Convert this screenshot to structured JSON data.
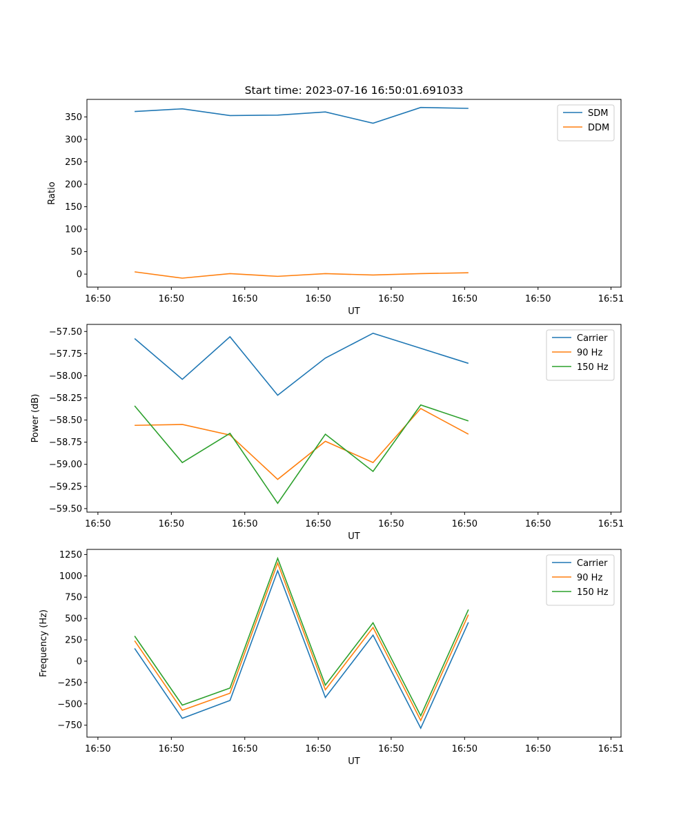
{
  "figure_title": "Start time: 2023-07-16 16:50:01.691033",
  "colors": {
    "blue": "#1f77b4",
    "orange": "#ff7f0e",
    "green": "#2ca02c"
  },
  "chart_data": [
    {
      "type": "line",
      "title": "Start time: 2023-07-16 16:50:01.691033",
      "xlabel": "UT",
      "ylabel": "Ratio",
      "ylim": [
        -29,
        389
      ],
      "yticks": [
        0,
        50,
        100,
        150,
        200,
        250,
        300,
        350
      ],
      "ytick_labels": [
        "0",
        "50",
        "100",
        "150",
        "200",
        "250",
        "300",
        "350"
      ],
      "xticks": [
        -0.77,
        0.77,
        2.31,
        3.85,
        5.38,
        6.92,
        8.46,
        9.99
      ],
      "xtick_labels": [
        "16:50",
        "16:50",
        "16:50",
        "16:50",
        "16:50",
        "16:50",
        "16:50",
        "16:51"
      ],
      "xlim": [
        -1,
        10.2
      ],
      "legend_position": "top-right",
      "x": [
        0,
        1,
        2,
        3,
        4,
        5,
        6,
        7
      ],
      "series": [
        {
          "name": "SDM",
          "color": "#1f77b4",
          "values": [
            362,
            368,
            353,
            354,
            361,
            336,
            371,
            369
          ]
        },
        {
          "name": "DDM",
          "color": "#ff7f0e",
          "values": [
            5,
            -9,
            1,
            -5,
            1,
            -2,
            1,
            3
          ]
        }
      ]
    },
    {
      "type": "line",
      "title": "",
      "xlabel": "UT",
      "ylabel": "Power (dB)",
      "ylim": [
        -59.54,
        -57.42
      ],
      "yticks": [
        -59.5,
        -59.25,
        -59.0,
        -58.75,
        -58.5,
        -58.25,
        -58.0,
        -57.75,
        -57.5
      ],
      "ytick_labels": [
        "−59.50",
        "−59.25",
        "−59.00",
        "−58.75",
        "−58.50",
        "−58.25",
        "−58.00",
        "−57.75",
        "−57.50"
      ],
      "xticks": [
        -0.77,
        0.77,
        2.31,
        3.85,
        5.38,
        6.92,
        8.46,
        9.99
      ],
      "xtick_labels": [
        "16:50",
        "16:50",
        "16:50",
        "16:50",
        "16:50",
        "16:50",
        "16:50",
        "16:51"
      ],
      "xlim": [
        -1,
        10.2
      ],
      "legend_position": "top-right",
      "x": [
        0,
        1,
        2,
        3,
        4,
        5,
        6,
        7
      ],
      "series": [
        {
          "name": "Carrier",
          "color": "#1f77b4",
          "values": [
            -57.58,
            -58.04,
            -57.56,
            -58.22,
            -57.8,
            -57.52,
            -57.69,
            -57.86
          ]
        },
        {
          "name": "90 Hz",
          "color": "#ff7f0e",
          "values": [
            -58.56,
            -58.55,
            -58.67,
            -59.17,
            -58.74,
            -58.98,
            -58.37,
            -58.66
          ]
        },
        {
          "name": "150 Hz",
          "color": "#2ca02c",
          "values": [
            -58.34,
            -58.98,
            -58.65,
            -59.44,
            -58.66,
            -59.08,
            -58.33,
            -58.51
          ]
        }
      ]
    },
    {
      "type": "line",
      "title": "",
      "xlabel": "UT",
      "ylabel": "Frequency (Hz)",
      "ylim": [
        -890,
        1310
      ],
      "yticks": [
        -750,
        -500,
        -250,
        0,
        250,
        500,
        750,
        1000,
        1250
      ],
      "ytick_labels": [
        "−750",
        "−500",
        "−250",
        "0",
        "250",
        "500",
        "750",
        "1000",
        "1250"
      ],
      "xticks": [
        -0.77,
        0.77,
        2.31,
        3.85,
        5.38,
        6.92,
        8.46,
        9.99
      ],
      "xtick_labels": [
        "16:50",
        "16:50",
        "16:50",
        "16:50",
        "16:50",
        "16:50",
        "16:50",
        "16:51"
      ],
      "xlim": [
        -1,
        10.2
      ],
      "legend_position": "top-right",
      "x": [
        0,
        1,
        2,
        3,
        4,
        5,
        6,
        7
      ],
      "series": [
        {
          "name": "Carrier",
          "color": "#1f77b4",
          "values": [
            150,
            -670,
            -460,
            1060,
            -425,
            305,
            -785,
            455
          ]
        },
        {
          "name": "90 Hz",
          "color": "#ff7f0e",
          "values": [
            240,
            -575,
            -375,
            1150,
            -335,
            395,
            -695,
            545
          ]
        },
        {
          "name": "150 Hz",
          "color": "#2ca02c",
          "values": [
            295,
            -515,
            -315,
            1205,
            -280,
            450,
            -640,
            605
          ]
        }
      ]
    }
  ]
}
